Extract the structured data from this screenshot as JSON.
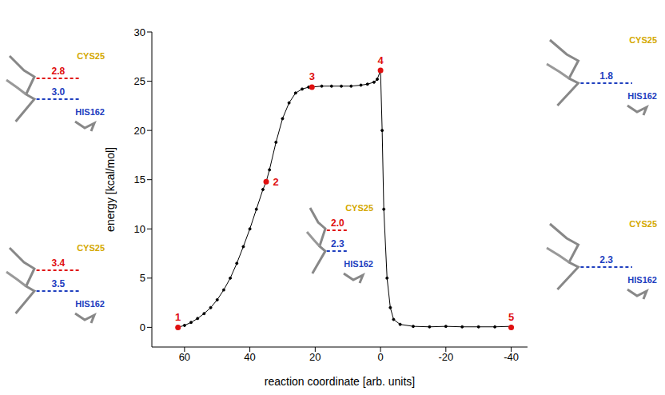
{
  "chart_data": {
    "type": "line",
    "x_label": "reaction coordinate [arb. units]",
    "y_label": "energy [kcal/mol]",
    "xlim": [
      70,
      -45
    ],
    "xticks": [
      60,
      40,
      20,
      0,
      -20,
      -40
    ],
    "ylim": [
      -2,
      30
    ],
    "yticks": [
      0,
      5,
      10,
      15,
      20,
      25,
      30
    ],
    "grid": false,
    "color": "#000000",
    "marker": "circle",
    "x": [
      62,
      60,
      58,
      56,
      54,
      52,
      50,
      48,
      46,
      44,
      42,
      40,
      38,
      36,
      35,
      34,
      32,
      30,
      28,
      26,
      24,
      22,
      21,
      18,
      15,
      12,
      9,
      6,
      4,
      2,
      1,
      0,
      -0.5,
      -1,
      -2,
      -3,
      -4,
      -6,
      -10,
      -15,
      -20,
      -25,
      -30,
      -35,
      -40
    ],
    "values": [
      0,
      0.2,
      0.5,
      0.9,
      1.4,
      2.0,
      2.8,
      3.8,
      5.0,
      6.5,
      8.2,
      10.0,
      12.0,
      14.0,
      14.8,
      16.0,
      18.8,
      21.2,
      22.8,
      23.8,
      24.2,
      24.4,
      24.4,
      24.5,
      24.5,
      24.5,
      24.5,
      24.6,
      24.7,
      24.9,
      25.2,
      26.1,
      20.0,
      12.0,
      5.0,
      2.0,
      0.8,
      0.3,
      0.1,
      0.05,
      0.1,
      0.05,
      0.05,
      0.05,
      0.1
    ],
    "markers": [
      {
        "label": "1",
        "x": 62,
        "y": 0,
        "color": "#e01010",
        "inset": {
          "cys": "CYS25",
          "his": "HIS162",
          "cys_distance": "3.4",
          "his_distance": "3.5"
        }
      },
      {
        "label": "2",
        "x": 35,
        "y": 14.8,
        "color": "#e01010",
        "inset": {
          "cys": "CYS25",
          "his": "HIS162",
          "cys_distance": "2.8",
          "his_distance": "3.0"
        }
      },
      {
        "label": "3",
        "x": 21,
        "y": 24.4,
        "color": "#e01010",
        "inset": {
          "cys": "CYS25",
          "his": "HIS162",
          "cys_distance": "2.0",
          "his_distance": "2.3"
        }
      },
      {
        "label": "4",
        "x": 0,
        "y": 26.1,
        "color": "#e01010",
        "inset": {
          "cys": "CYS25",
          "his": "HIS162",
          "his_distance": "1.8"
        }
      },
      {
        "label": "5",
        "x": -40,
        "y": 0,
        "color": "#e01010",
        "inset": {
          "cys": "CYS25",
          "his": "HIS162",
          "his_distance": "2.3"
        }
      }
    ]
  }
}
